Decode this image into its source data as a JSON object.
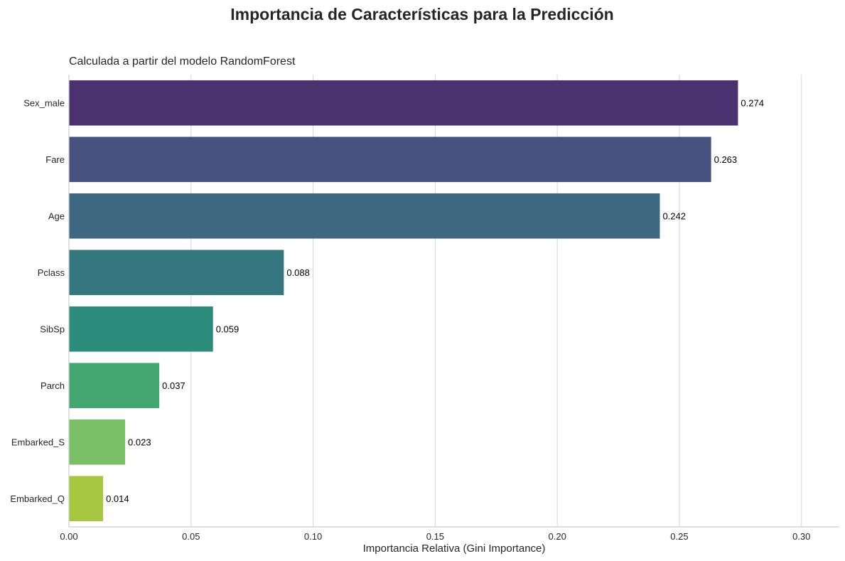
{
  "chart_data": {
    "type": "bar",
    "orientation": "horizontal",
    "title": "Importancia de Características para la Predicción",
    "subtitle": "Calculada a partir del modelo RandomForest",
    "xlabel": "Importancia Relativa (Gini Importance)",
    "ylabel": "",
    "categories": [
      "Sex_male",
      "Fare",
      "Age",
      "Pclass",
      "SibSp",
      "Parch",
      "Embarked_S",
      "Embarked_Q"
    ],
    "values": [
      0.274,
      0.263,
      0.242,
      0.088,
      0.059,
      0.037,
      0.023,
      0.014
    ],
    "data_labels": [
      "0.274",
      "0.263",
      "0.242",
      "0.088",
      "0.059",
      "0.037",
      "0.023",
      "0.014"
    ],
    "colors": [
      "#4a3170",
      "#47527f",
      "#3e6782",
      "#34777f",
      "#2b8c7b",
      "#44a772",
      "#78bf66",
      "#a6c73f"
    ],
    "xticks": [
      0,
      0.05,
      0.1,
      0.15,
      0.2,
      0.25,
      0.3
    ],
    "xtick_labels": [
      "0.00",
      "0.05",
      "0.10",
      "0.15",
      "0.20",
      "0.25",
      "0.30"
    ],
    "xlim": [
      0,
      0.3155
    ],
    "grid": "vertical"
  }
}
